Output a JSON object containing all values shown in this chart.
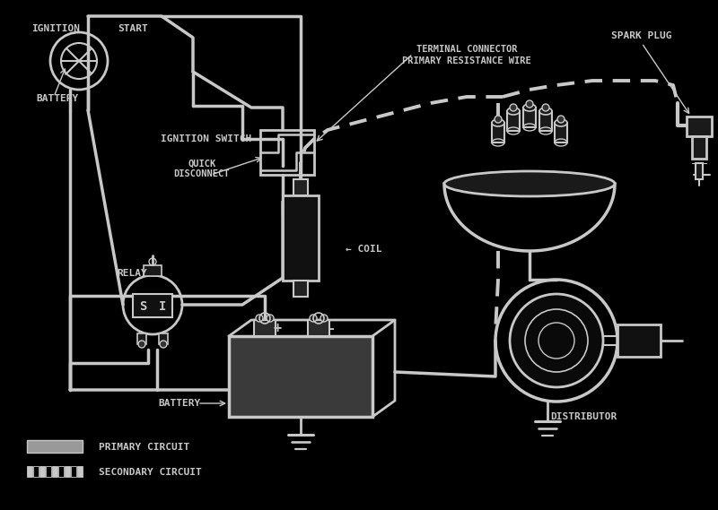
{
  "bg_color": "#000000",
  "lc": "#c8c8c8",
  "tc": "#c8c8c8",
  "fig_w": 8.0,
  "fig_h": 5.69,
  "dpi": 100,
  "labels": {
    "ignition": "IGNITION",
    "start": "START",
    "ignition_switch": "IGNITION SWITCH",
    "battery_arrow": "BATTERY",
    "terminal_connector": "TERMINAL CONNECTOR",
    "primary_resistance": "PRIMARY RESISTANCE WIRE",
    "spark_plug": "SPARK PLUG",
    "quick_disconnect": "QUICK\nDISCONNECT",
    "relay": "RELAY",
    "coil": "COIL",
    "battery_label": "BATTERY",
    "distributor": "DISTRIBUTOR",
    "primary_circuit": "PRIMARY CIRCUIT",
    "secondary_circuit": "SECONDARY CIRCUIT"
  }
}
